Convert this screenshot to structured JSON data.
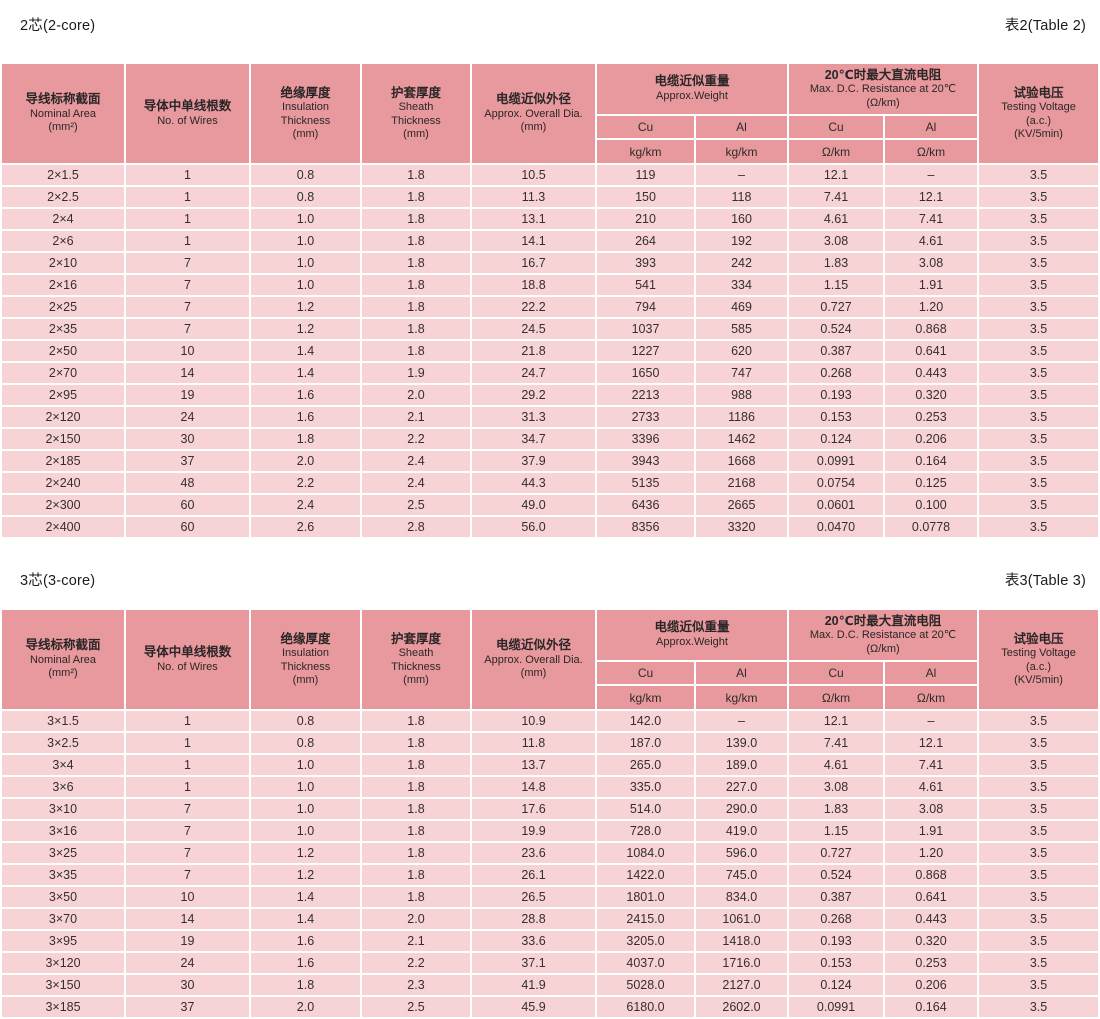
{
  "colors": {
    "header_bg": "#e8999d",
    "row_bg": "#f8d3d5",
    "separator": "#ffffff",
    "text": "#2f2b2c"
  },
  "columns": {
    "nominal_area": {
      "zh": "导线标称截面",
      "en": "Nominal Area\n(mm²)"
    },
    "wires": {
      "zh": "导体中单线根数",
      "en": "No. of Wires"
    },
    "insulation": {
      "zh": "绝缘厚度",
      "en": "Insulation\nThickness\n(mm)"
    },
    "sheath": {
      "zh": "护套厚度",
      "en": "Sheath\nThickness\n(mm)"
    },
    "overall_dia": {
      "zh": "电缆近似外径",
      "en": "Approx. Overall Dia.\n(mm)"
    },
    "weight": {
      "zh": "电缆近似重量",
      "en": "Approx.Weight"
    },
    "resistance": {
      "zh": "20℃时最大直流电阻",
      "en": "Max. D.C. Resistance at 20℃\n(Ω/km)"
    },
    "testing_voltage": {
      "zh": "试验电压",
      "en": "Testing Voltage\n(a.c.)\n(KV/5min)"
    },
    "material_cu": "Cu",
    "material_al": "Al",
    "unit_weight": "kg/km",
    "unit_resistance": "Ω/km"
  },
  "tables": [
    {
      "title": "2芯(2-core)",
      "label": "表2(Table 2)",
      "rows": [
        [
          "2×1.5",
          "1",
          "0.8",
          "1.8",
          "10.5",
          "119",
          "–",
          "12.1",
          "–",
          "3.5"
        ],
        [
          "2×2.5",
          "1",
          "0.8",
          "1.8",
          "11.3",
          "150",
          "118",
          "7.41",
          "12.1",
          "3.5"
        ],
        [
          "2×4",
          "1",
          "1.0",
          "1.8",
          "13.1",
          "210",
          "160",
          "4.61",
          "7.41",
          "3.5"
        ],
        [
          "2×6",
          "1",
          "1.0",
          "1.8",
          "14.1",
          "264",
          "192",
          "3.08",
          "4.61",
          "3.5"
        ],
        [
          "2×10",
          "7",
          "1.0",
          "1.8",
          "16.7",
          "393",
          "242",
          "1.83",
          "3.08",
          "3.5"
        ],
        [
          "2×16",
          "7",
          "1.0",
          "1.8",
          "18.8",
          "541",
          "334",
          "1.15",
          "1.91",
          "3.5"
        ],
        [
          "2×25",
          "7",
          "1.2",
          "1.8",
          "22.2",
          "794",
          "469",
          "0.727",
          "1.20",
          "3.5"
        ],
        [
          "2×35",
          "7",
          "1.2",
          "1.8",
          "24.5",
          "1037",
          "585",
          "0.524",
          "0.868",
          "3.5"
        ],
        [
          "2×50",
          "10",
          "1.4",
          "1.8",
          "21.8",
          "1227",
          "620",
          "0.387",
          "0.641",
          "3.5"
        ],
        [
          "2×70",
          "14",
          "1.4",
          "1.9",
          "24.7",
          "1650",
          "747",
          "0.268",
          "0.443",
          "3.5"
        ],
        [
          "2×95",
          "19",
          "1.6",
          "2.0",
          "29.2",
          "2213",
          "988",
          "0.193",
          "0.320",
          "3.5"
        ],
        [
          "2×120",
          "24",
          "1.6",
          "2.1",
          "31.3",
          "2733",
          "1186",
          "0.153",
          "0.253",
          "3.5"
        ],
        [
          "2×150",
          "30",
          "1.8",
          "2.2",
          "34.7",
          "3396",
          "1462",
          "0.124",
          "0.206",
          "3.5"
        ],
        [
          "2×185",
          "37",
          "2.0",
          "2.4",
          "37.9",
          "3943",
          "1668",
          "0.0991",
          "0.164",
          "3.5"
        ],
        [
          "2×240",
          "48",
          "2.2",
          "2.4",
          "44.3",
          "5135",
          "2168",
          "0.0754",
          "0.125",
          "3.5"
        ],
        [
          "2×300",
          "60",
          "2.4",
          "2.5",
          "49.0",
          "6436",
          "2665",
          "0.0601",
          "0.100",
          "3.5"
        ],
        [
          "2×400",
          "60",
          "2.6",
          "2.8",
          "56.0",
          "8356",
          "3320",
          "0.0470",
          "0.0778",
          "3.5"
        ]
      ]
    },
    {
      "title": "3芯(3-core)",
      "label": "表3(Table 3)",
      "rows": [
        [
          "3×1.5",
          "1",
          "0.8",
          "1.8",
          "10.9",
          "142.0",
          "–",
          "12.1",
          "–",
          "3.5"
        ],
        [
          "3×2.5",
          "1",
          "0.8",
          "1.8",
          "11.8",
          "187.0",
          "139.0",
          "7.41",
          "12.1",
          "3.5"
        ],
        [
          "3×4",
          "1",
          "1.0",
          "1.8",
          "13.7",
          "265.0",
          "189.0",
          "4.61",
          "7.41",
          "3.5"
        ],
        [
          "3×6",
          "1",
          "1.0",
          "1.8",
          "14.8",
          "335.0",
          "227.0",
          "3.08",
          "4.61",
          "3.5"
        ],
        [
          "3×10",
          "7",
          "1.0",
          "1.8",
          "17.6",
          "514.0",
          "290.0",
          "1.83",
          "3.08",
          "3.5"
        ],
        [
          "3×16",
          "7",
          "1.0",
          "1.8",
          "19.9",
          "728.0",
          "419.0",
          "1.15",
          "1.91",
          "3.5"
        ],
        [
          "3×25",
          "7",
          "1.2",
          "1.8",
          "23.6",
          "1084.0",
          "596.0",
          "0.727",
          "1.20",
          "3.5"
        ],
        [
          "3×35",
          "7",
          "1.2",
          "1.8",
          "26.1",
          "1422.0",
          "745.0",
          "0.524",
          "0.868",
          "3.5"
        ],
        [
          "3×50",
          "10",
          "1.4",
          "1.8",
          "26.5",
          "1801.0",
          "834.0",
          "0.387",
          "0.641",
          "3.5"
        ],
        [
          "3×70",
          "14",
          "1.4",
          "2.0",
          "28.8",
          "2415.0",
          "1061.0",
          "0.268",
          "0.443",
          "3.5"
        ],
        [
          "3×95",
          "19",
          "1.6",
          "2.1",
          "33.6",
          "3205.0",
          "1418.0",
          "0.193",
          "0.320",
          "3.5"
        ],
        [
          "3×120",
          "24",
          "1.6",
          "2.2",
          "37.1",
          "4037.0",
          "1716.0",
          "0.153",
          "0.253",
          "3.5"
        ],
        [
          "3×150",
          "30",
          "1.8",
          "2.3",
          "41.9",
          "5028.0",
          "2127.0",
          "0.124",
          "0.206",
          "3.5"
        ],
        [
          "3×185",
          "37",
          "2.0",
          "2.5",
          "45.9",
          "6180.0",
          "2602.0",
          "0.0991",
          "0.164",
          "3.5"
        ]
      ]
    }
  ]
}
